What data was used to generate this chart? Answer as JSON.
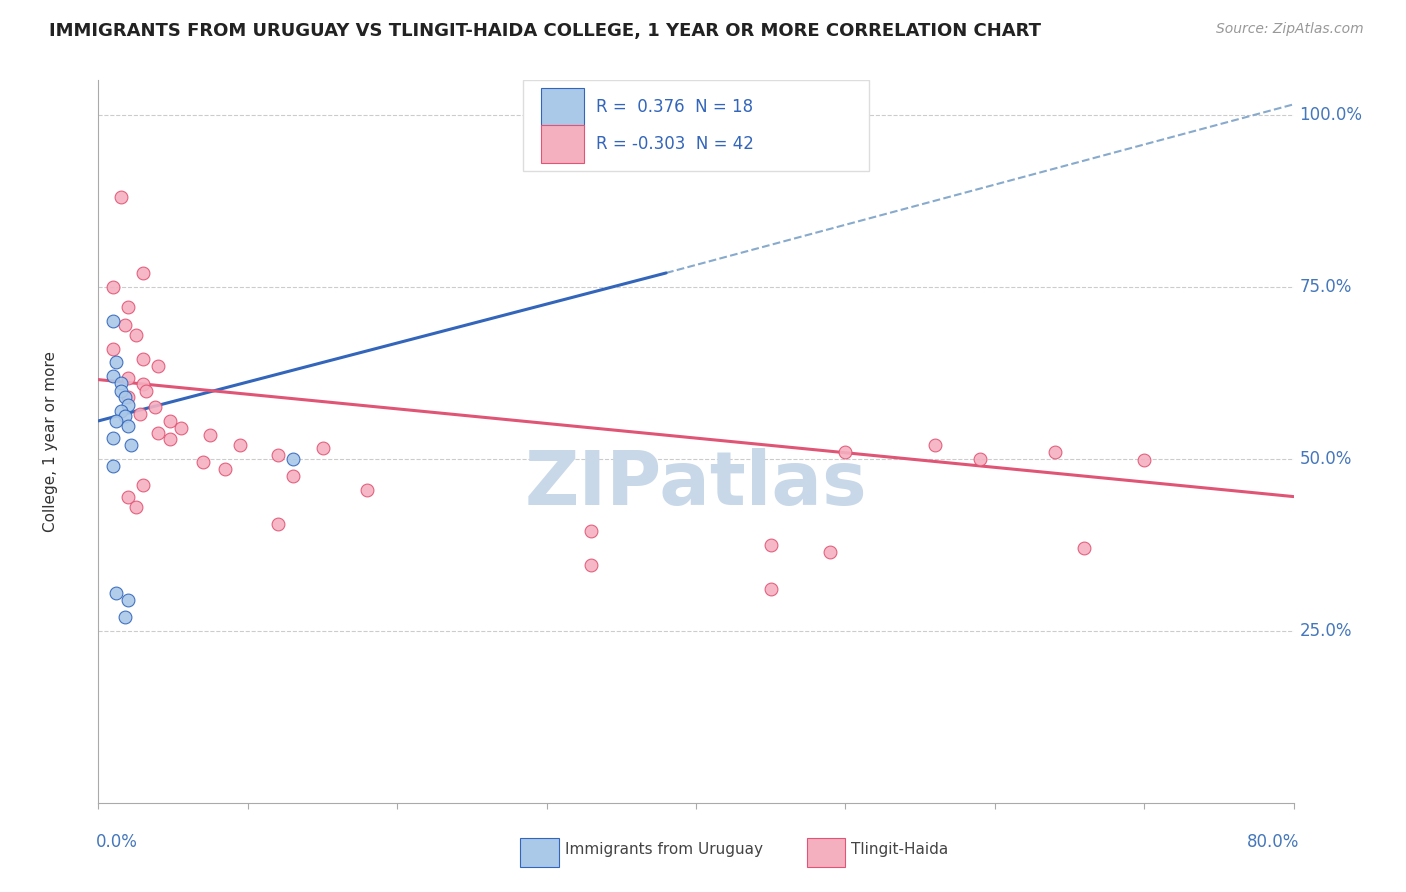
{
  "title": "IMMIGRANTS FROM URUGUAY VS TLINGIT-HAIDA COLLEGE, 1 YEAR OR MORE CORRELATION CHART",
  "source": "Source: ZipAtlas.com",
  "ylabel": "College, 1 year or more",
  "xlabel_bottom_left": "0.0%",
  "xlabel_bottom_right": "80.0%",
  "xlim": [
    0.0,
    0.8
  ],
  "ylim": [
    0.0,
    1.05
  ],
  "yticks": [
    0.25,
    0.5,
    0.75,
    1.0
  ],
  "ytick_labels": [
    "25.0%",
    "50.0%",
    "75.0%",
    "100.0%"
  ],
  "xticks": [
    0.0,
    0.1,
    0.2,
    0.3,
    0.4,
    0.5,
    0.6,
    0.7,
    0.8
  ],
  "legend_r1": "R =  0.376",
  "legend_n1": "N = 18",
  "legend_r2": "R = -0.303",
  "legend_n2": "N = 42",
  "blue_scatter": [
    [
      0.01,
      0.7
    ],
    [
      0.012,
      0.64
    ],
    [
      0.01,
      0.62
    ],
    [
      0.015,
      0.61
    ],
    [
      0.015,
      0.598
    ],
    [
      0.018,
      0.59
    ],
    [
      0.02,
      0.578
    ],
    [
      0.015,
      0.57
    ],
    [
      0.018,
      0.562
    ],
    [
      0.012,
      0.555
    ],
    [
      0.02,
      0.548
    ],
    [
      0.01,
      0.53
    ],
    [
      0.022,
      0.52
    ],
    [
      0.01,
      0.49
    ],
    [
      0.012,
      0.305
    ],
    [
      0.02,
      0.295
    ],
    [
      0.018,
      0.27
    ],
    [
      0.13,
      0.5
    ]
  ],
  "pink_scatter": [
    [
      0.015,
      0.88
    ],
    [
      0.03,
      0.77
    ],
    [
      0.01,
      0.75
    ],
    [
      0.02,
      0.72
    ],
    [
      0.018,
      0.695
    ],
    [
      0.025,
      0.68
    ],
    [
      0.01,
      0.66
    ],
    [
      0.03,
      0.645
    ],
    [
      0.04,
      0.635
    ],
    [
      0.02,
      0.618
    ],
    [
      0.03,
      0.608
    ],
    [
      0.032,
      0.598
    ],
    [
      0.02,
      0.59
    ],
    [
      0.038,
      0.575
    ],
    [
      0.028,
      0.565
    ],
    [
      0.048,
      0.555
    ],
    [
      0.055,
      0.545
    ],
    [
      0.04,
      0.538
    ],
    [
      0.075,
      0.535
    ],
    [
      0.048,
      0.528
    ],
    [
      0.095,
      0.52
    ],
    [
      0.15,
      0.515
    ],
    [
      0.12,
      0.505
    ],
    [
      0.07,
      0.495
    ],
    [
      0.085,
      0.485
    ],
    [
      0.13,
      0.475
    ],
    [
      0.03,
      0.462
    ],
    [
      0.18,
      0.455
    ],
    [
      0.02,
      0.445
    ],
    [
      0.025,
      0.43
    ],
    [
      0.12,
      0.405
    ],
    [
      0.33,
      0.395
    ],
    [
      0.45,
      0.375
    ],
    [
      0.5,
      0.51
    ],
    [
      0.56,
      0.52
    ],
    [
      0.59,
      0.5
    ],
    [
      0.64,
      0.51
    ],
    [
      0.7,
      0.498
    ],
    [
      0.66,
      0.37
    ],
    [
      0.49,
      0.365
    ],
    [
      0.33,
      0.345
    ],
    [
      0.45,
      0.31
    ]
  ],
  "blue_line": [
    [
      0.0,
      0.555
    ],
    [
      0.38,
      0.77
    ]
  ],
  "blue_dashed_line": [
    [
      0.38,
      0.77
    ],
    [
      0.8,
      1.015
    ]
  ],
  "pink_line": [
    [
      0.0,
      0.615
    ],
    [
      0.8,
      0.445
    ]
  ],
  "scatter_size": 85,
  "blue_fill_color": "#aac8e8",
  "pink_fill_color": "#f5b0c0",
  "blue_line_color": "#3366bb",
  "pink_line_color": "#e05575",
  "blue_dashed_color": "#88aacc",
  "axis_label_color": "#4477bb",
  "grid_color": "#cccccc",
  "watermark": "ZIPatlas",
  "watermark_color": "#c8d8e8",
  "title_color": "#222222",
  "legend_text_color": "#3366bb",
  "bottom_legend_text_color": "#444444"
}
